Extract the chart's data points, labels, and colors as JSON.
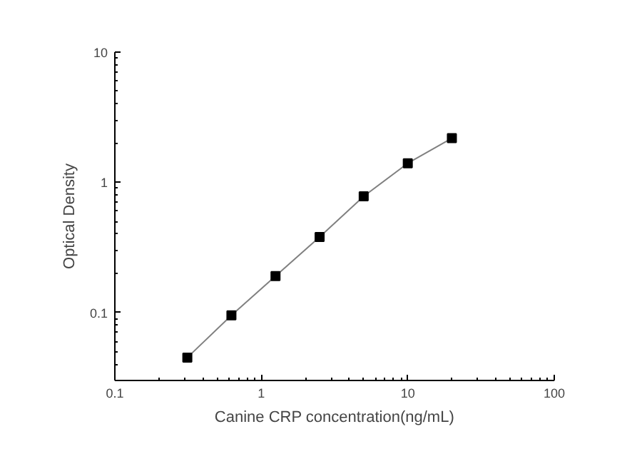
{
  "chart_data": {
    "type": "line",
    "xlabel": "Canine CRP concentration(ng/mL)",
    "ylabel": "Optical Density",
    "x": [
      0.3125,
      0.625,
      1.25,
      2.5,
      5,
      10,
      20
    ],
    "series": [
      {
        "color": "#808080",
        "marker": "none",
        "values": [
          0.045,
          0.095,
          0.19,
          0.38,
          0.78,
          1.4,
          2.18
        ]
      },
      {
        "type": "scatter",
        "color": "#000000",
        "marker": "square",
        "values": [
          0.045,
          0.095,
          0.19,
          0.38,
          0.78,
          1.4,
          2.18
        ]
      }
    ],
    "log": "xy",
    "xlim": [
      0.1,
      100
    ],
    "ylim": [
      0.03,
      10
    ],
    "xticks": [
      0.1,
      1,
      10,
      100
    ],
    "yticks": [
      0.1,
      1,
      10
    ],
    "grid": false
  }
}
